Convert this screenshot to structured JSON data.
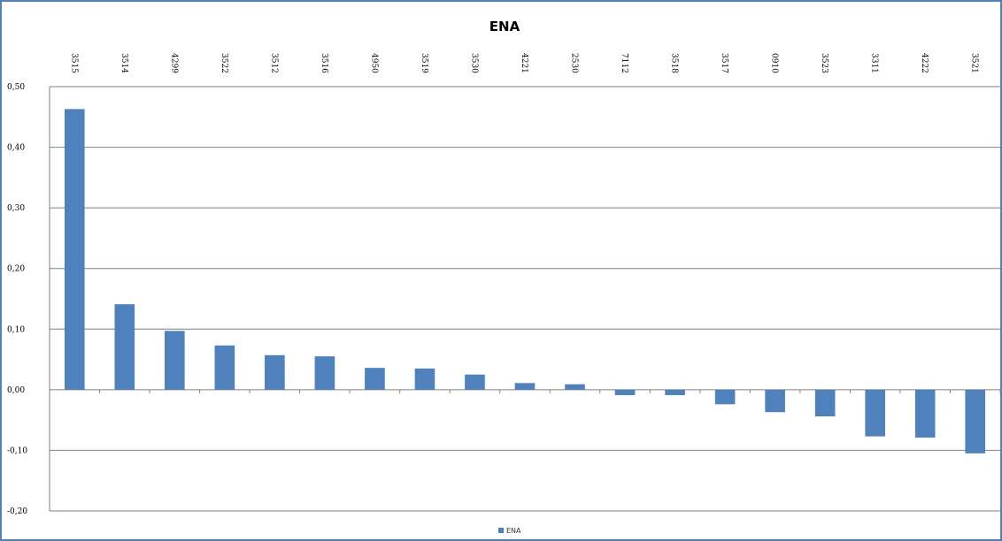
{
  "colors": {
    "bar": "#4f81bd",
    "grid": "#7f7f7f",
    "frame": "#4f81bd"
  },
  "chart_data": {
    "type": "bar",
    "title": "ENA",
    "categories": [
      "3515",
      "3514",
      "4299",
      "3522",
      "3512",
      "3516",
      "4950",
      "3519",
      "3530",
      "4221",
      "2530",
      "7112",
      "3518",
      "3517",
      "0910",
      "3523",
      "3311",
      "4222",
      "3521"
    ],
    "series": [
      {
        "name": "ENA",
        "values": [
          0.463,
          0.141,
          0.097,
          0.073,
          0.057,
          0.055,
          0.036,
          0.035,
          0.025,
          0.011,
          0.009,
          -0.009,
          -0.009,
          -0.024,
          -0.037,
          -0.044,
          -0.077,
          -0.079,
          -0.105
        ]
      }
    ],
    "ylim": [
      -0.2,
      0.5
    ],
    "yticks": [
      "0,50",
      "0,40",
      "0,30",
      "0,20",
      "0,10",
      "0,00",
      "-0,10",
      "-0,20"
    ],
    "ytick_values": [
      0.5,
      0.4,
      0.3,
      0.2,
      0.1,
      0.0,
      -0.1,
      -0.2
    ],
    "grid": true,
    "legend_position": "bottom"
  }
}
